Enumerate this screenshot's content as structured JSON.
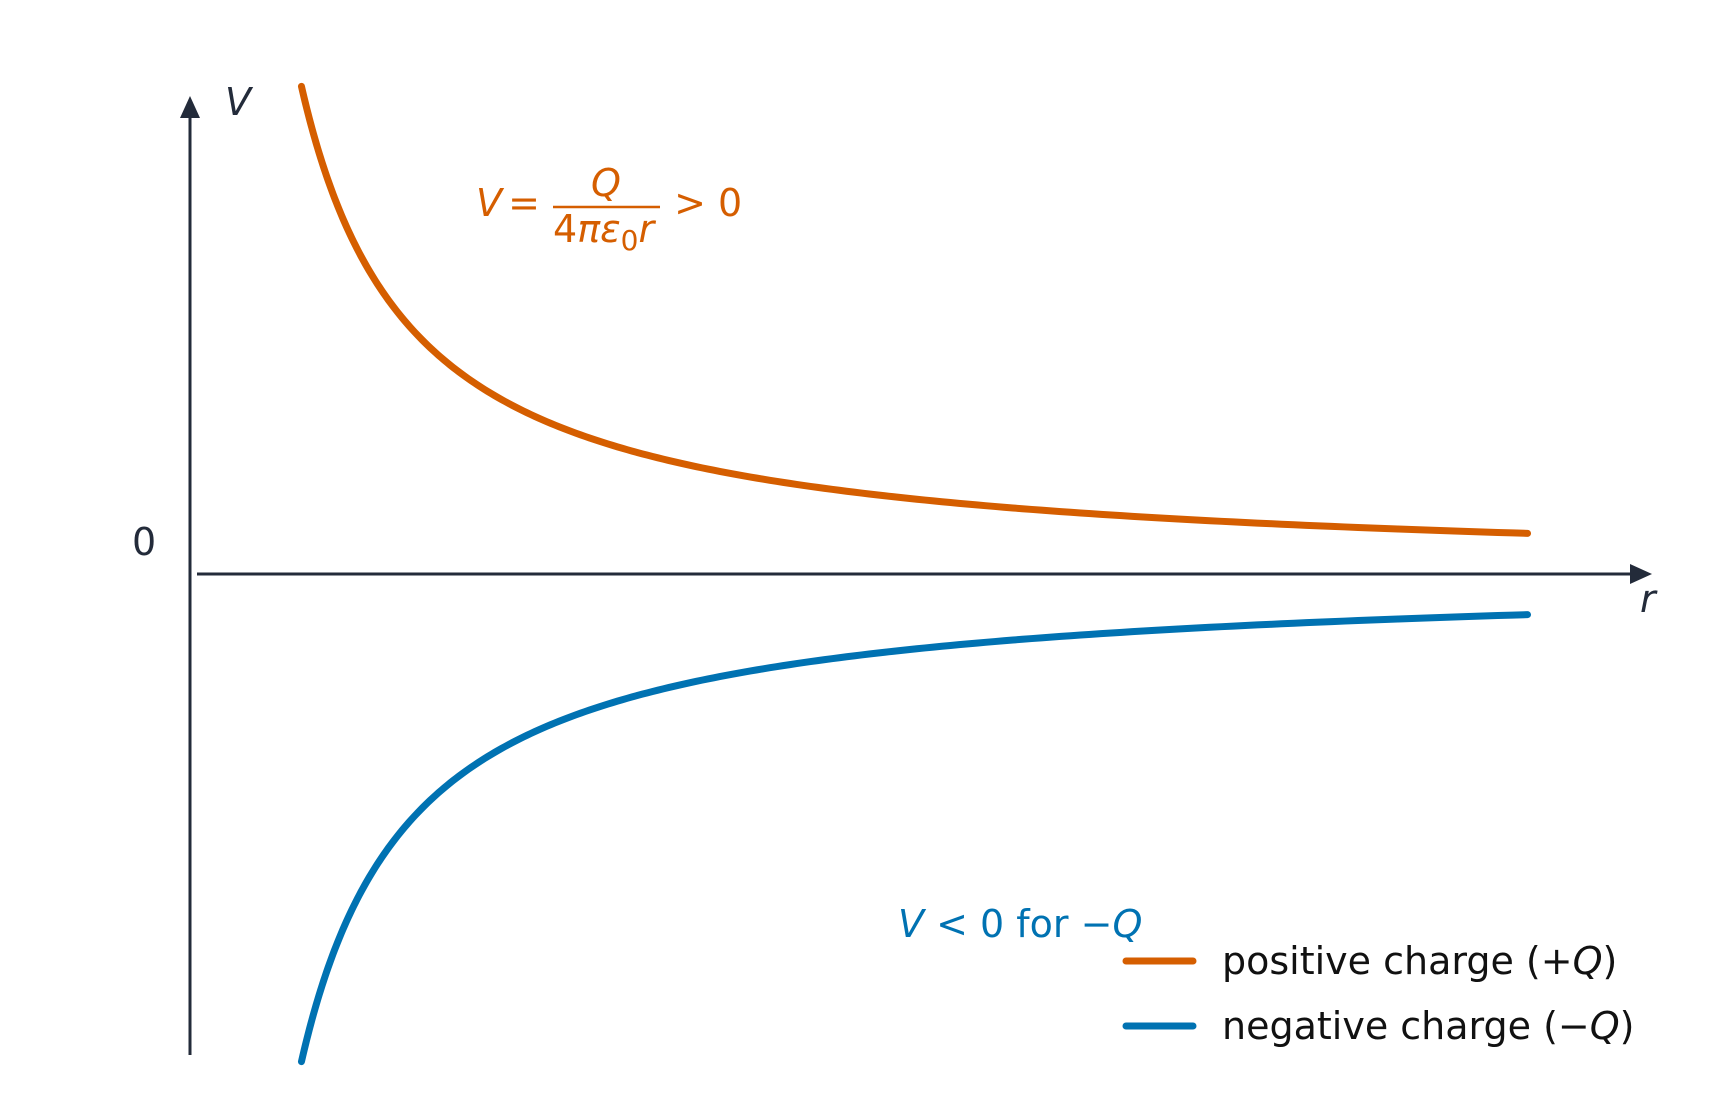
{
  "chart_data": {
    "type": "line",
    "title": "",
    "xlabel": "r",
    "ylabel": "V",
    "y_tick_labels": [
      "0"
    ],
    "grid": false,
    "legend_position": "bottom-right",
    "xlim": [
      0,
      13
    ],
    "ylim": [
      -1.05,
      1.05
    ],
    "x_domain": [
      1,
      12
    ],
    "series": [
      {
        "name": "positive charge (+Q)",
        "name_prefix": "positive charge (+",
        "name_var": "Q",
        "name_suffix": ")",
        "formula": "V = k/r",
        "k": 1,
        "color": "#d55e00"
      },
      {
        "name": "negative charge (−Q)",
        "name_prefix": "negative charge (−",
        "name_var": "Q",
        "name_suffix": ")",
        "formula": "V = -k/r",
        "k": -1,
        "color": "#0072b2"
      }
    ],
    "annotations": {
      "positive": {
        "lhs": "V",
        "eq": " = ",
        "numerator": "Q",
        "denominator_prefix": "4",
        "denominator_pi": "π",
        "denominator_eps": "ε",
        "denominator_sub": "0",
        "denominator_r": "r",
        "rhs": " > 0",
        "color": "#d55e00"
      },
      "negative": {
        "lhs": "V",
        "mid": " < 0 for −",
        "var": "Q",
        "color": "#0072b2"
      }
    },
    "axis_color": "#232b3a"
  }
}
